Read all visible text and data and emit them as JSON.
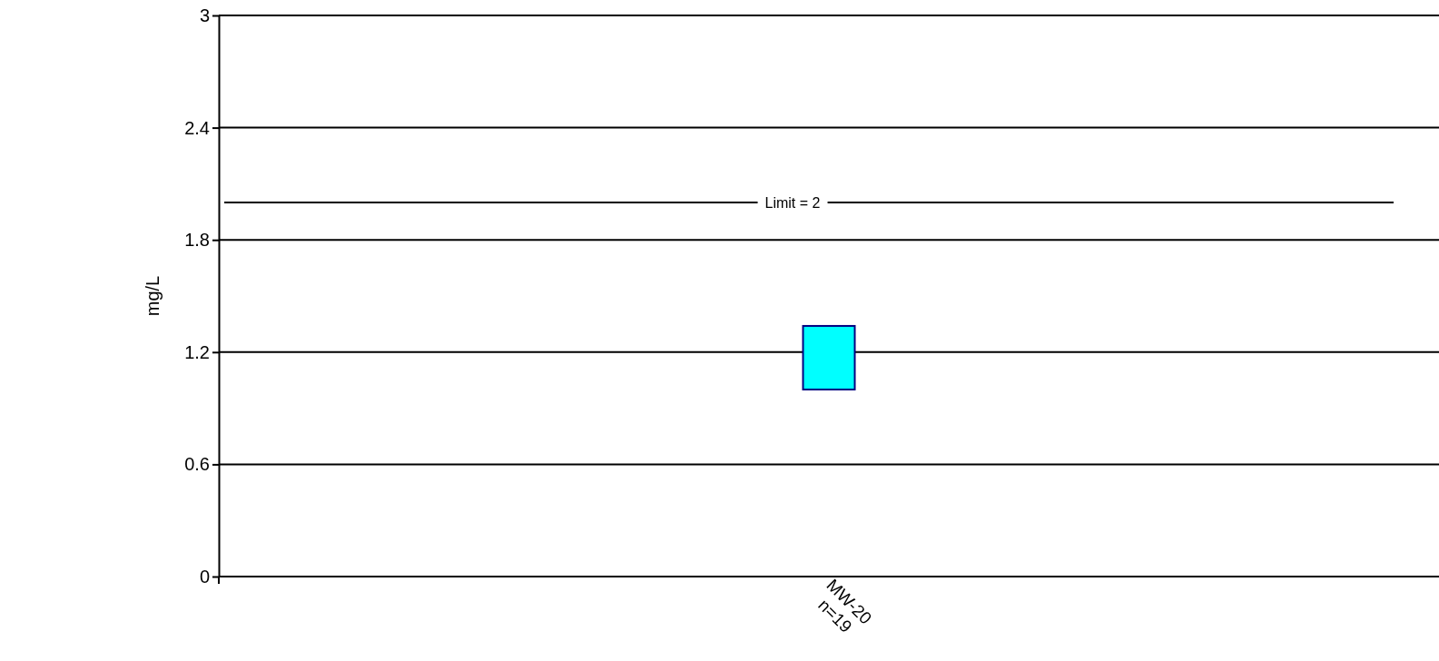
{
  "chart_data": {
    "type": "box",
    "ylabel": "mg/L",
    "categories": [
      "MW-20\nn=19"
    ],
    "boxes": [
      {
        "low": 1.0,
        "q1": 1.0,
        "median": 1.0,
        "q3": 1.34,
        "high": 1.34
      }
    ],
    "color": "#00ffff",
    "ylim": [
      0,
      3
    ],
    "yticks": [
      0,
      0.6,
      1.2,
      1.8,
      2.4,
      3
    ],
    "grid": "y",
    "ref_lines": [
      {
        "axis": "y",
        "value": 2,
        "label": "Limit = 2"
      }
    ]
  }
}
